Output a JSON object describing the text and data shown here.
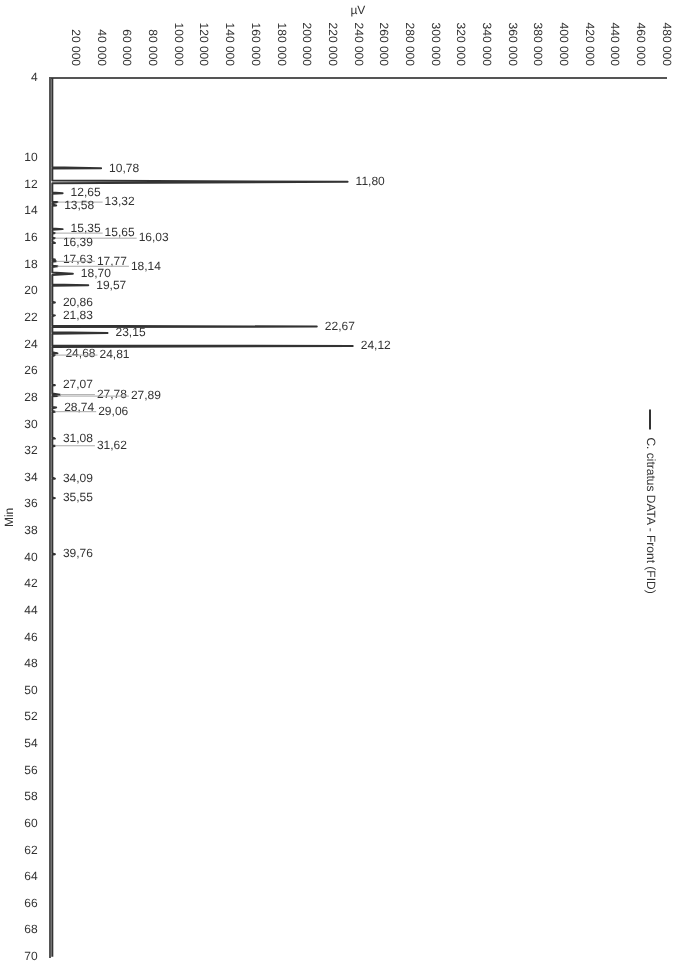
{
  "chart_data": {
    "type": "line",
    "xlabel": "µV",
    "ylabel": "Min",
    "legend": "right",
    "grid": false,
    "marker": "none",
    "line_style": "solid",
    "ylim": [
      70,
      4
    ],
    "yticks": [
      4,
      10,
      12,
      14,
      16,
      18,
      20,
      22,
      24,
      26,
      28,
      30,
      32,
      34,
      36,
      38,
      40,
      42,
      44,
      46,
      48,
      50,
      52,
      54,
      56,
      58,
      60,
      62,
      64,
      66,
      68,
      70
    ],
    "xlim": [
      0,
      480000
    ],
    "xticks": [
      {
        "value": 20000,
        "label": "20 000"
      },
      {
        "value": 40000,
        "label": "40 000"
      },
      {
        "value": 60000,
        "label": "60 000"
      },
      {
        "value": 80000,
        "label": "80 000"
      },
      {
        "value": 100000,
        "label": "100 000"
      },
      {
        "value": 120000,
        "label": "120 000"
      },
      {
        "value": 140000,
        "label": "140 000"
      },
      {
        "value": 160000,
        "label": "160 000"
      },
      {
        "value": 180000,
        "label": "180 000"
      },
      {
        "value": 200000,
        "label": "200 000"
      },
      {
        "value": 220000,
        "label": "220 000"
      },
      {
        "value": 240000,
        "label": "240 000"
      },
      {
        "value": 260000,
        "label": "260 000"
      },
      {
        "value": 280000,
        "label": "280 000"
      },
      {
        "value": 300000,
        "label": "300 000"
      },
      {
        "value": 320000,
        "label": "320 000"
      },
      {
        "value": 340000,
        "label": "340 000"
      },
      {
        "value": 360000,
        "label": "360 000"
      },
      {
        "value": 380000,
        "label": "380 000"
      },
      {
        "value": 400000,
        "label": "400 000"
      },
      {
        "value": 420000,
        "label": "420 000"
      },
      {
        "value": 440000,
        "label": "440 000"
      },
      {
        "value": 460000,
        "label": "460 000"
      },
      {
        "value": 480000,
        "label": "480 000"
      }
    ],
    "series": [
      {
        "name": "C. citratus DATA - Front (FID)",
        "color": "#333333",
        "values": [
          4,
          10.7,
          10.78,
          10.8,
          11.7,
          11.8,
          11.9,
          12.6,
          12.65,
          12.7,
          13.3,
          13.32,
          13.4,
          13.5,
          13.58,
          13.6,
          15.3,
          15.35,
          15.4,
          15.6,
          15.65,
          15.7,
          16.0,
          16.03,
          16.1,
          16.3,
          16.39,
          16.4,
          17.6,
          17.63,
          17.7,
          17.7,
          17.77,
          17.8,
          18.1,
          18.14,
          18.2,
          18.6,
          18.7,
          18.8,
          19.5,
          19.57,
          19.6,
          20.8,
          20.86,
          20.9,
          21.8,
          21.83,
          21.9,
          22.6,
          22.67,
          22.7,
          23.1,
          23.15,
          23.2,
          24.1,
          24.12,
          24.2,
          24.6,
          24.68,
          24.7,
          24.8,
          24.81,
          24.9,
          27.0,
          27.07,
          27.1,
          27.7,
          27.78,
          27.8,
          27.8,
          27.89,
          27.9,
          28.7,
          28.74,
          28.8,
          29.0,
          29.06,
          29.1,
          31.0,
          31.08,
          31.1,
          31.6,
          31.62,
          31.7,
          34.0,
          34.09,
          34.1,
          35.5,
          35.55,
          35.6,
          39.7,
          39.76,
          39.8,
          70
        ],
        "x": [
          2000,
          2000,
          40000,
          2000,
          2000,
          232000,
          2000,
          2000,
          10000,
          2000,
          2000,
          6000,
          2000,
          2000,
          5000,
          2000,
          2000,
          10000,
          2000,
          2000,
          4000,
          2000,
          2000,
          4000,
          2000,
          2000,
          4000,
          2000,
          2000,
          4000,
          2000,
          2000,
          5000,
          2000,
          2000,
          6000,
          2000,
          2000,
          18000,
          2000,
          2000,
          30000,
          2000,
          2000,
          4000,
          2000,
          2000,
          4000,
          2000,
          2000,
          208000,
          2000,
          2000,
          45000,
          2000,
          2000,
          236000,
          2000,
          2000,
          6000,
          2000,
          2000,
          4000,
          2000,
          2000,
          4000,
          2000,
          2000,
          8000,
          2000,
          2000,
          6000,
          2000,
          2000,
          5000,
          2000,
          2000,
          4000,
          2000,
          2000,
          4000,
          2000,
          2000,
          4000,
          2000,
          2000,
          4000,
          2000,
          2000,
          4000,
          2000,
          2000,
          4000,
          2000,
          2000
        ]
      }
    ],
    "annotations": [
      {
        "text": "10,78",
        "y": 10.78,
        "x": 40000
      },
      {
        "text": "11,80",
        "y": 11.8,
        "x": 232000
      },
      {
        "text": "12,65",
        "y": 12.65,
        "x": 10000
      },
      {
        "text": "13,32",
        "y": 13.32,
        "x": 6000
      },
      {
        "text": "13,58",
        "y": 13.58,
        "x": 5000
      },
      {
        "text": "15,35",
        "y": 15.35,
        "x": 10000
      },
      {
        "text": "15,65",
        "y": 15.65,
        "x": 4000
      },
      {
        "text": "16,03",
        "y": 16.03,
        "x": 4000
      },
      {
        "text": "16,39",
        "y": 16.39,
        "x": 4000
      },
      {
        "text": "17,63",
        "y": 17.63,
        "x": 4000
      },
      {
        "text": "17,77",
        "y": 17.77,
        "x": 5000
      },
      {
        "text": "18,14",
        "y": 18.14,
        "x": 6000
      },
      {
        "text": "18,70",
        "y": 18.7,
        "x": 18000
      },
      {
        "text": "19,57",
        "y": 19.57,
        "x": 30000
      },
      {
        "text": "20,86",
        "y": 20.86,
        "x": 4000
      },
      {
        "text": "21,83",
        "y": 21.83,
        "x": 4000
      },
      {
        "text": "22,67",
        "y": 22.67,
        "x": 208000
      },
      {
        "text": "23,15",
        "y": 23.15,
        "x": 45000
      },
      {
        "text": "24,12",
        "y": 24.12,
        "x": 236000
      },
      {
        "text": "24,68",
        "y": 24.68,
        "x": 6000
      },
      {
        "text": "24,81",
        "y": 24.81,
        "x": 4000
      },
      {
        "text": "27,07",
        "y": 27.07,
        "x": 4000
      },
      {
        "text": "27,78",
        "y": 27.78,
        "x": 8000
      },
      {
        "text": "27,89",
        "y": 27.89,
        "x": 6000
      },
      {
        "text": "28,74",
        "y": 28.74,
        "x": 5000
      },
      {
        "text": "29,06",
        "y": 29.06,
        "x": 4000
      },
      {
        "text": "31,08",
        "y": 31.08,
        "x": 4000
      },
      {
        "text": "31,62",
        "y": 31.62,
        "x": 4000
      },
      {
        "text": "34,09",
        "y": 34.09,
        "x": 4000
      },
      {
        "text": "35,55",
        "y": 35.55,
        "x": 4000
      },
      {
        "text": "39,76",
        "y": 39.76,
        "x": 4000
      }
    ]
  }
}
